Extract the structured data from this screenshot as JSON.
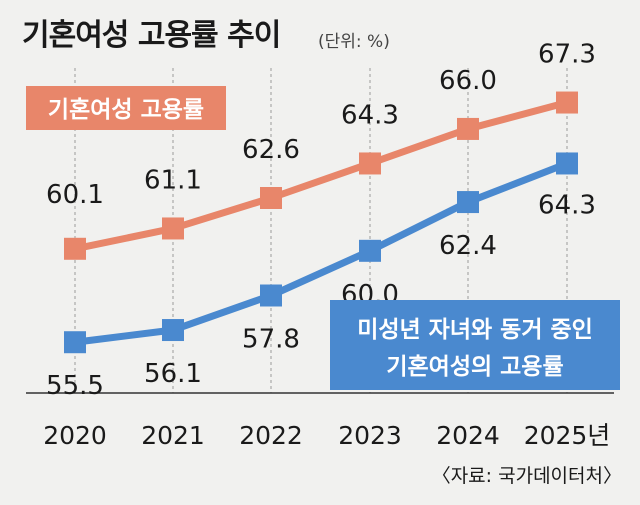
{
  "header": {
    "title": "기혼여성 고용률 추이",
    "unit": "(단위: %)"
  },
  "source": "〈자료: 국가데이터처〉",
  "colors": {
    "married_women": "#e8866a",
    "cohabiting": "#4a89cf",
    "grid": "#a9a9a9",
    "axis": "#333333"
  },
  "chart_data": {
    "type": "line",
    "title": "기혼여성 고용률 추이",
    "unit": "(단위: %)",
    "categories": [
      "2020",
      "2021",
      "2022",
      "2023",
      "2024",
      "2025년"
    ],
    "series": [
      {
        "name": "기혼여성 고용률",
        "values": [
          60.1,
          61.1,
          62.6,
          64.3,
          66.0,
          67.3
        ],
        "labels": [
          "60.1",
          "61.1",
          "62.6",
          "64.3",
          "66.0",
          "67.3"
        ]
      },
      {
        "name": "미성년 자녀와 동거 중인 기혼여성의 고용률",
        "legend_lines": [
          "미성년 자녀와 동거 중인",
          "기혼여성의 고용률"
        ],
        "values": [
          55.5,
          56.1,
          57.8,
          60.0,
          62.4,
          64.3
        ],
        "labels": [
          "55.5",
          "56.1",
          "57.8",
          "60.0",
          "62.4",
          "64.3"
        ]
      }
    ],
    "ylim": [
      53,
      69
    ],
    "grid": "vertical dashed",
    "source": "〈자료: 국가데이터처〉"
  }
}
